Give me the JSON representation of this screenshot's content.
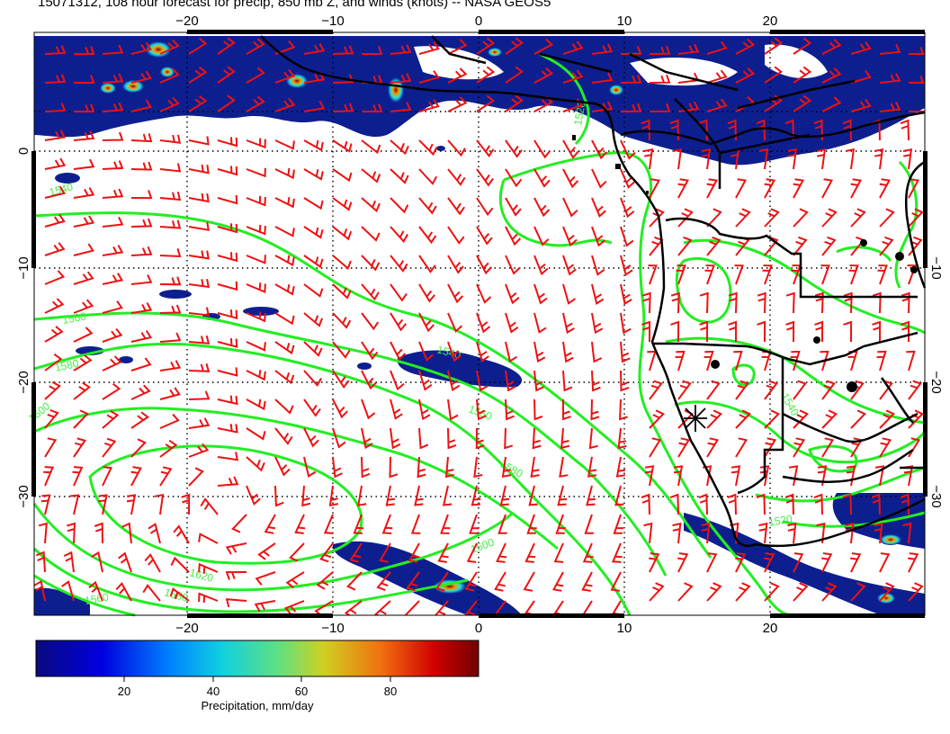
{
  "title": "15071312, 108 hour forecast for precip, 850 mb Z, and winds (knots) -- NASA GEOS5",
  "map": {
    "lon_ticks_top": [
      "−20",
      "−10",
      "0",
      "10",
      "20"
    ],
    "lon_ticks_bottom": [
      "−20",
      "−10",
      "0",
      "10",
      "20"
    ],
    "lat_ticks_left": [
      "0",
      "−10",
      "−20",
      "−30"
    ],
    "lat_ticks_right": [
      "−10",
      "−20",
      "−30"
    ],
    "contour_labels": [
      "1540",
      "1560",
      "1580",
      "1600",
      "1540",
      "1560",
      "1580",
      "1600",
      "1620",
      "1580",
      "1560",
      "1520",
      "1520",
      "1540"
    ],
    "colors": {
      "wind_barb": "#ee1111",
      "contour": "#22ee22",
      "coastline": "#000000",
      "precip_low": "#0a1a7a",
      "precip_high": "#7a0000"
    },
    "marker": "station-asterisk"
  },
  "colorbar": {
    "label": "Precipitation, mm/day",
    "ticks": [
      "20",
      "40",
      "60",
      "80"
    ],
    "range": [
      0,
      100
    ]
  }
}
